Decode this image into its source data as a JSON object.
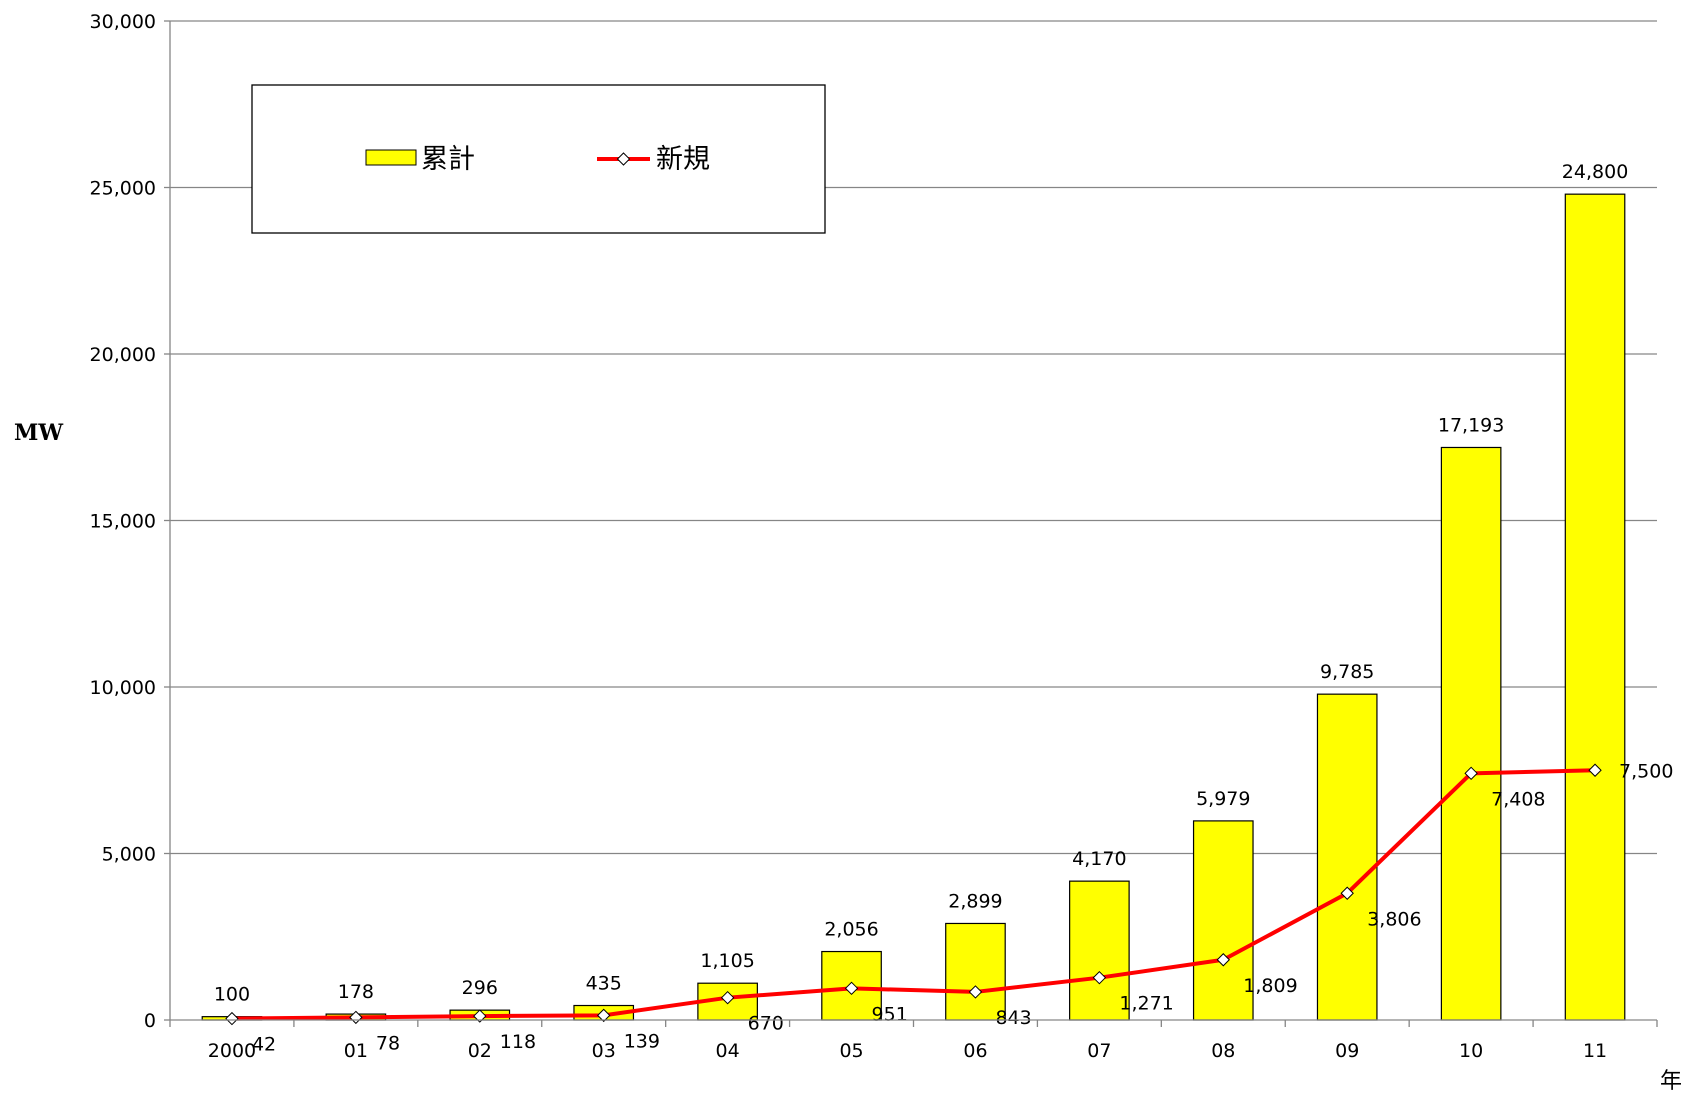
{
  "chart_data": {
    "type": "bar",
    "categories": [
      "2000",
      "01",
      "02",
      "03",
      "04",
      "05",
      "06",
      "07",
      "08",
      "09",
      "10",
      "11"
    ],
    "series": [
      {
        "name": "累計",
        "type": "bar",
        "values": [
          100,
          178,
          296,
          435,
          1105,
          2056,
          2899,
          4170,
          5979,
          9785,
          17193,
          24800
        ],
        "labels": [
          "100",
          "178",
          "296",
          "435",
          "1,105",
          "2,056",
          "2,899",
          "4,170",
          "5,979",
          "9,785",
          "17,193",
          "24,800"
        ]
      },
      {
        "name": "新規",
        "type": "line",
        "values": [
          42,
          78,
          118,
          139,
          670,
          951,
          843,
          1271,
          1809,
          3806,
          7408,
          7500
        ],
        "labels": [
          "42",
          "78",
          "118",
          "139",
          "670",
          "951",
          "843",
          "1,271",
          "1,809",
          "3,806",
          "7,408",
          "7,500"
        ]
      }
    ],
    "ylabel": "MW",
    "xlabel": "年",
    "ylim": [
      0,
      30000
    ],
    "yticks": [
      "0",
      "5,000",
      "10,000",
      "15,000",
      "20,000",
      "25,000",
      "30,000"
    ],
    "grid": true,
    "legend_position": "top-left",
    "colors": {
      "bar_fill": "#ffff00",
      "bar_stroke": "#000000",
      "line": "#ff0000",
      "marker_fill": "#ffffff",
      "grid": "#868686"
    }
  }
}
